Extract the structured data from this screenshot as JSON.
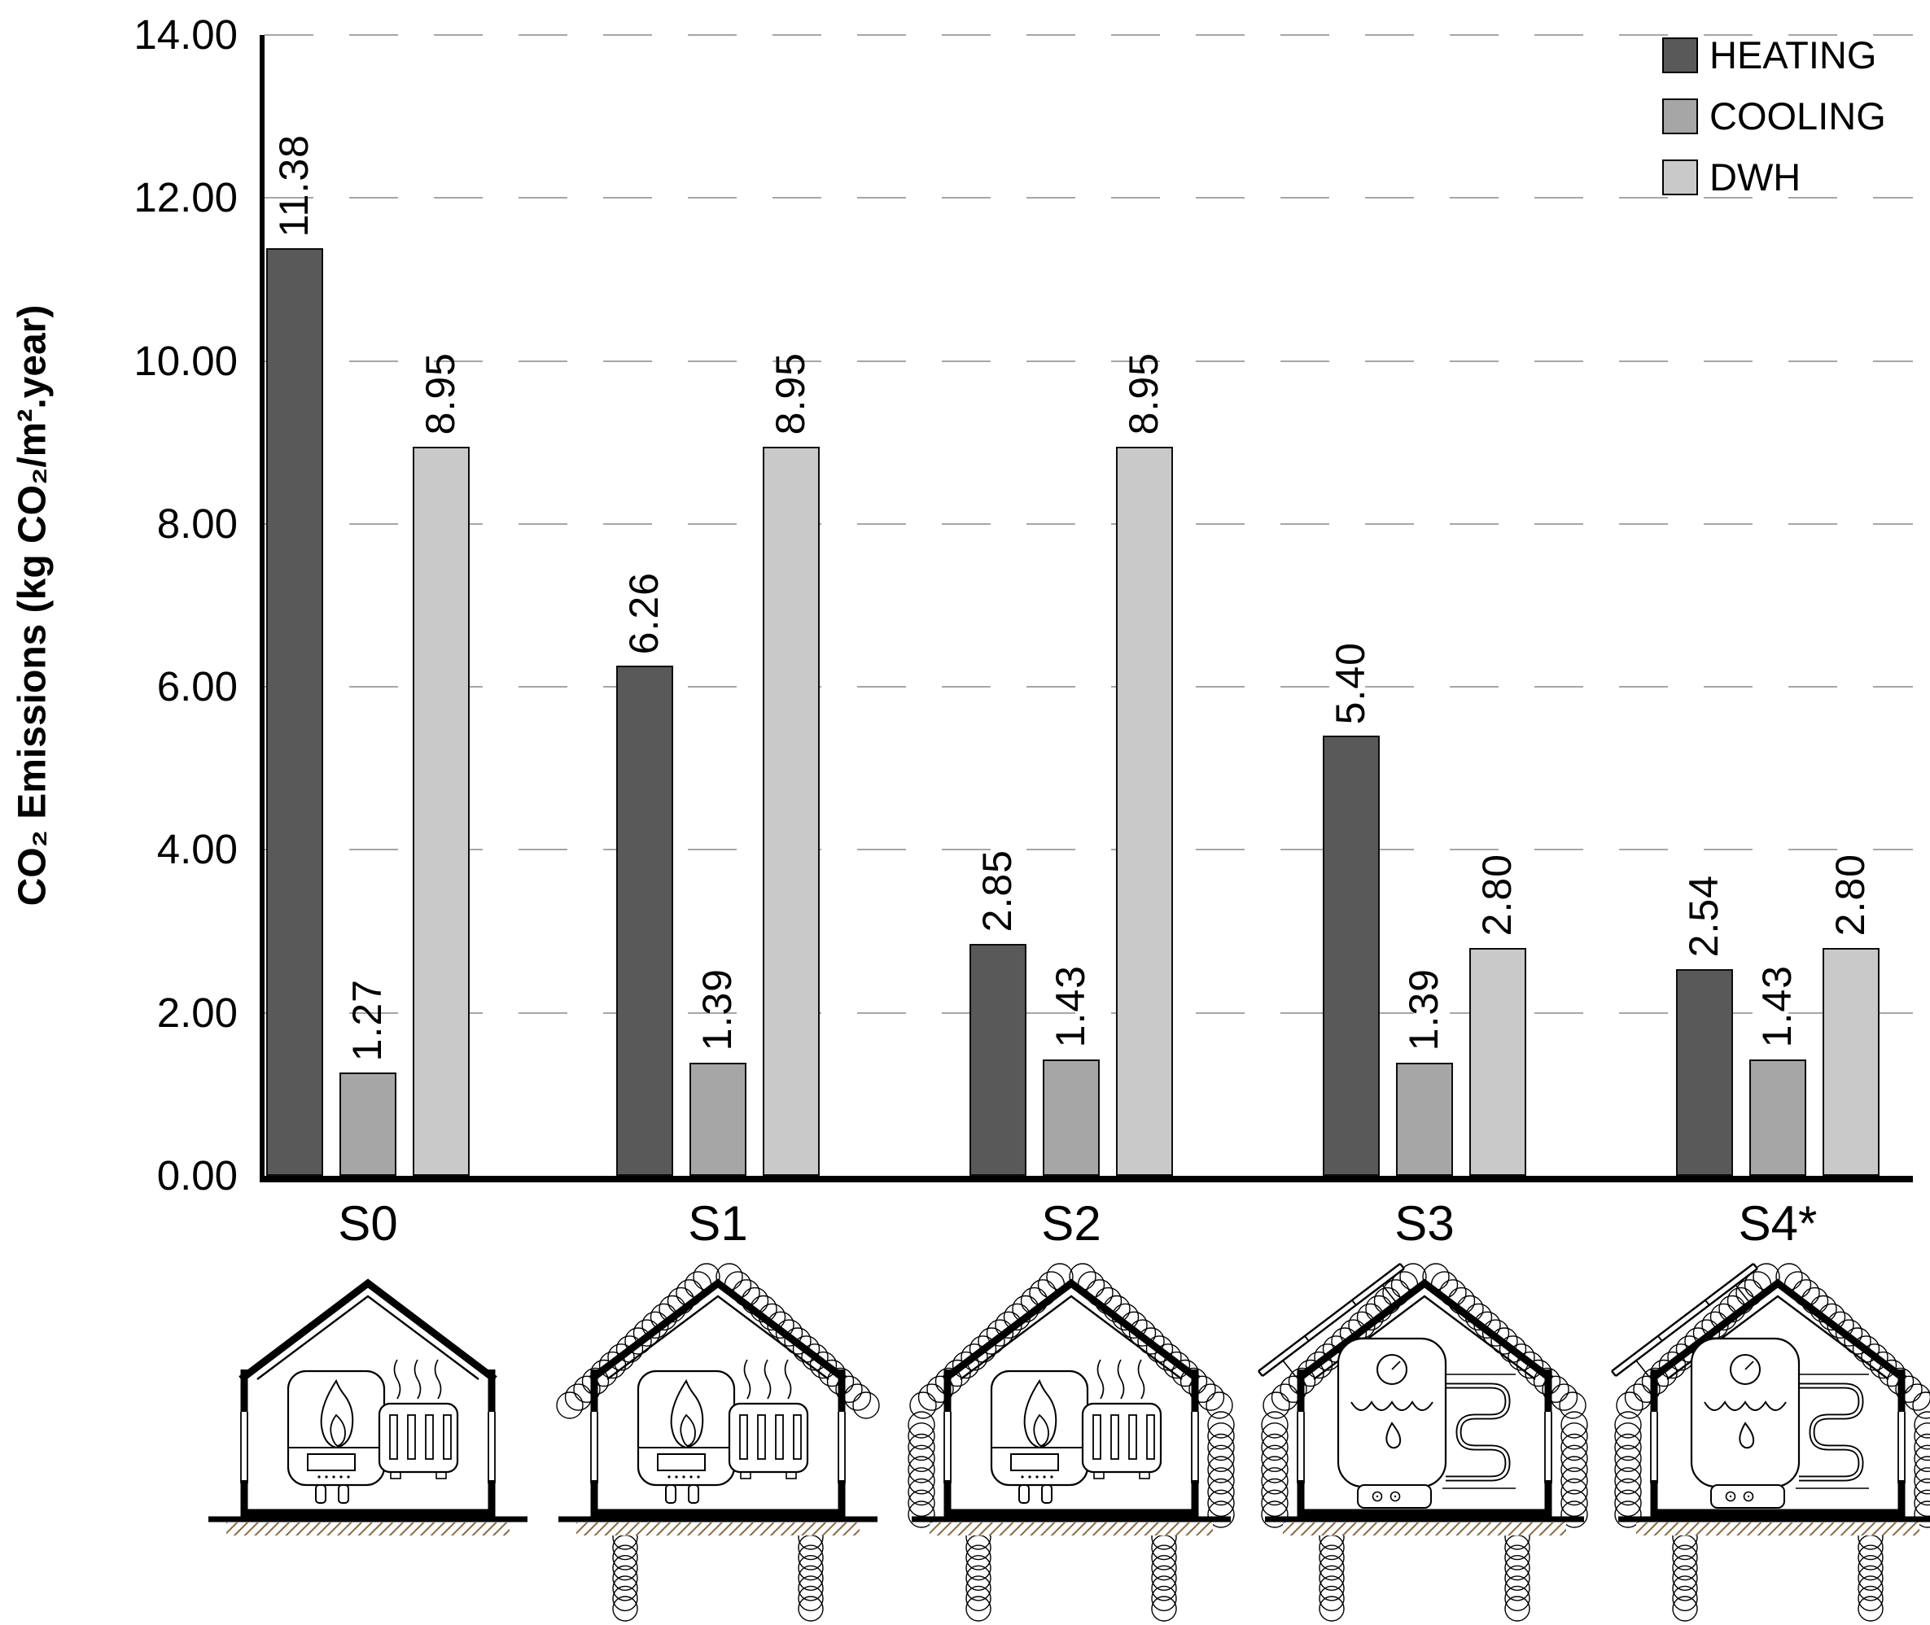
{
  "chart": {
    "y_axis_title": "CO₂ Emissions (kg CO₂/m².year)",
    "y_ticks": [
      "14.00",
      "12.00",
      "10.00",
      "8.00",
      "6.00",
      "4.00",
      "2.00",
      "0.00"
    ],
    "legend": [
      {
        "label": "HEATING",
        "color": "#595959"
      },
      {
        "label": "COOLING",
        "color": "#a6a6a6"
      },
      {
        "label": "DWH",
        "color": "#c9c9c9"
      }
    ]
  },
  "chart_data": {
    "type": "bar",
    "title": "",
    "xlabel": "",
    "ylabel": "CO₂ Emissions (kg CO₂/m².year)",
    "categories": [
      "S0",
      "S1",
      "S2",
      "S3",
      "S4*"
    ],
    "series": [
      {
        "name": "HEATING",
        "color": "#595959",
        "values": [
          11.38,
          6.26,
          2.85,
          5.4,
          2.54
        ],
        "labels": [
          "11.38",
          "6.26",
          "2.85",
          "5.40",
          "2.54"
        ]
      },
      {
        "name": "COOLING",
        "color": "#a6a6a6",
        "values": [
          1.27,
          1.39,
          1.43,
          1.39,
          1.43
        ],
        "labels": [
          "1.27",
          "1.39",
          "1.43",
          "1.39",
          "1.43"
        ]
      },
      {
        "name": "DWH",
        "color": "#c9c9c9",
        "values": [
          8.95,
          8.95,
          8.95,
          2.8,
          2.8
        ],
        "labels": [
          "8.95",
          "8.95",
          "8.95",
          "2.80",
          "2.80"
        ]
      }
    ],
    "ylim": [
      0,
      14
    ],
    "y_tick_step": 2,
    "grid": "dashed-horizontal",
    "gridline_color": "#a6a6a6",
    "legend_position": "top-right",
    "value_labels_rotated_90": true
  },
  "houses": [
    {
      "label": "S0",
      "roof_insulation": false,
      "wall_insulation": false,
      "ground_insulation": false,
      "solar_panel": false,
      "appliance": "gas-boiler-radiator"
    },
    {
      "label": "S1",
      "roof_insulation": true,
      "wall_insulation": false,
      "ground_insulation": true,
      "solar_panel": false,
      "appliance": "gas-boiler-radiator"
    },
    {
      "label": "S2",
      "roof_insulation": true,
      "wall_insulation": true,
      "ground_insulation": true,
      "solar_panel": false,
      "appliance": "gas-boiler-radiator"
    },
    {
      "label": "S3",
      "roof_insulation": true,
      "wall_insulation": true,
      "ground_insulation": true,
      "solar_panel": true,
      "appliance": "heat-pump-underfloor"
    },
    {
      "label": "S4*",
      "roof_insulation": true,
      "wall_insulation": true,
      "ground_insulation": true,
      "solar_panel": true,
      "appliance": "heat-pump-underfloor"
    }
  ],
  "colors": {
    "axis": "#000000",
    "ground_hatch": "#8b6b43",
    "bar_border": "#0d0d0d"
  }
}
